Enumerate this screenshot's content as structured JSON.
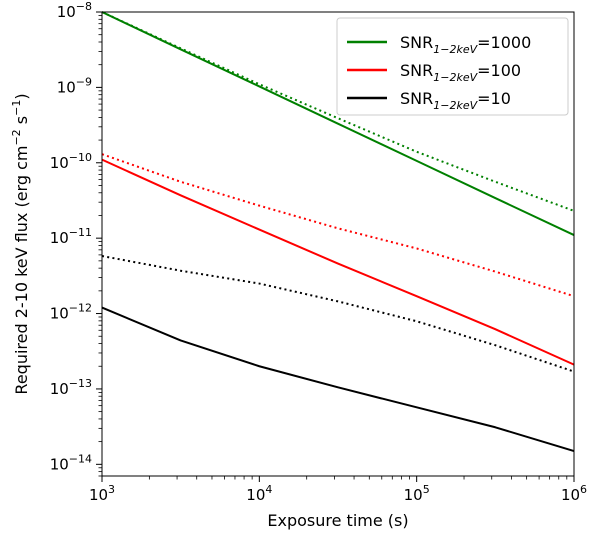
{
  "chart_data": {
    "type": "line",
    "xlabel": "Exposure time (s)",
    "ylabel": "Required 2-10 keV flux (erg cm",
    "ylabel_parts": {
      "exp1": "−2",
      "mid": " s",
      "exp2": "−1",
      "end": ")"
    },
    "xscale": "log",
    "yscale": "log",
    "xlim": [
      1000,
      1000000
    ],
    "ylim": [
      7e-15,
      1e-08
    ],
    "x_ticks": [
      {
        "value": 1000,
        "base": "10",
        "exp": "3"
      },
      {
        "value": 10000,
        "base": "10",
        "exp": "4"
      },
      {
        "value": 100000,
        "base": "10",
        "exp": "5"
      },
      {
        "value": 1000000,
        "base": "10",
        "exp": "6"
      }
    ],
    "y_ticks": [
      {
        "value": 1e-14,
        "base": "10",
        "exp": "−14"
      },
      {
        "value": 1e-13,
        "base": "10",
        "exp": "−13"
      },
      {
        "value": 1e-12,
        "base": "10",
        "exp": "−12"
      },
      {
        "value": 1e-11,
        "base": "10",
        "exp": "−11"
      },
      {
        "value": 1e-10,
        "base": "10",
        "exp": "−10"
      },
      {
        "value": 1e-09,
        "base": "10",
        "exp": "−9"
      },
      {
        "value": 1e-08,
        "base": "10",
        "exp": "−8"
      }
    ],
    "legend_position": "top-right",
    "legend": [
      {
        "prefix": "SNR",
        "sub": "1−2keV",
        "suffix": "=1000",
        "color": "#008000"
      },
      {
        "prefix": "SNR",
        "sub": "1−2keV",
        "suffix": "=100",
        "color": "#ff0000"
      },
      {
        "prefix": "SNR",
        "sub": "1−2keV",
        "suffix": "=10",
        "color": "#000000"
      }
    ],
    "series": [
      {
        "legend_index": 0,
        "style": "solid",
        "color": "#008000",
        "x": [
          1000,
          3160,
          10000,
          31600,
          100000,
          316000,
          1000000
        ],
        "y": [
          1e-08,
          3.2e-09,
          1.03e-09,
          3.3e-10,
          1.06e-10,
          3.4e-11,
          1.1e-11
        ]
      },
      {
        "legend_index": 0,
        "style": "dotted",
        "color": "#008000",
        "x": [
          1000,
          3160,
          10000,
          31600,
          100000,
          316000,
          1000000
        ],
        "y": [
          1e-08,
          3.3e-09,
          1.1e-09,
          3.9e-10,
          1.4e-10,
          5.6e-11,
          2.3e-11
        ]
      },
      {
        "legend_index": 1,
        "style": "solid",
        "color": "#ff0000",
        "x": [
          1000,
          3160,
          10000,
          31600,
          100000,
          316000,
          1000000
        ],
        "y": [
          1.1e-10,
          3.7e-11,
          1.3e-11,
          4.6e-12,
          1.7e-12,
          6.2e-13,
          2.1e-13
        ]
      },
      {
        "legend_index": 1,
        "style": "dotted",
        "color": "#ff0000",
        "x": [
          1000,
          3160,
          10000,
          31600,
          100000,
          316000,
          1000000
        ],
        "y": [
          1.3e-10,
          5.6e-11,
          2.7e-11,
          1.35e-11,
          7.3e-12,
          3.6e-12,
          1.7e-12
        ]
      },
      {
        "legend_index": 2,
        "style": "solid",
        "color": "#000000",
        "x": [
          1000,
          3160,
          10000,
          31600,
          100000,
          316000,
          1000000
        ],
        "y": [
          1.2e-12,
          4.4e-13,
          2e-13,
          1.05e-13,
          5.7e-14,
          3.1e-14,
          1.5e-14
        ]
      },
      {
        "legend_index": 2,
        "style": "dotted",
        "color": "#000000",
        "x": [
          1000,
          3160,
          10000,
          31600,
          100000,
          316000,
          1000000
        ],
        "y": [
          5.8e-12,
          3.7e-12,
          2.5e-12,
          1.45e-12,
          7.9e-13,
          3.8e-13,
          1.7e-13
        ]
      }
    ]
  }
}
